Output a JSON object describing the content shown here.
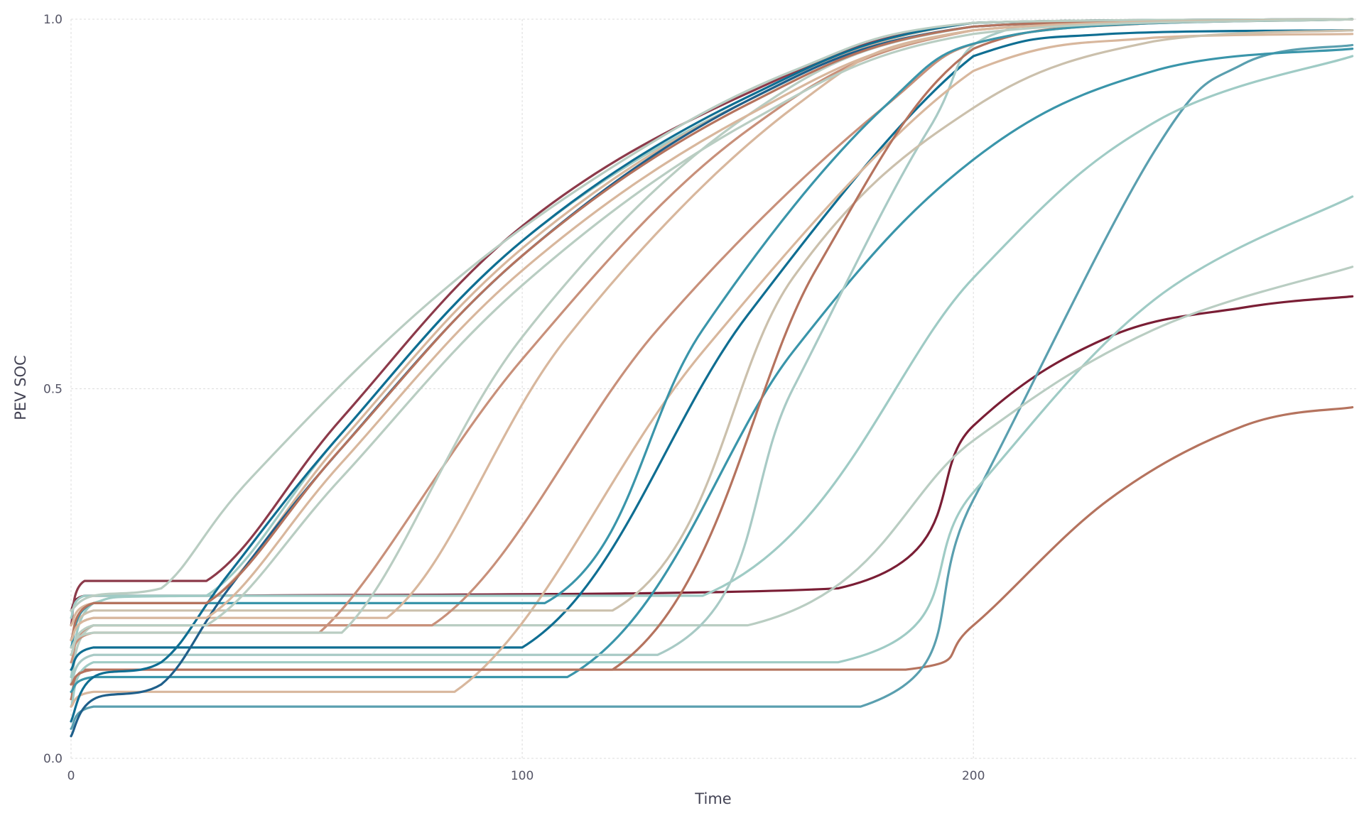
{
  "chart_data": {
    "type": "line",
    "title": "",
    "xlabel": "Time",
    "ylabel": "PEV SOC",
    "xlim": [
      0,
      285
    ],
    "ylim": [
      0,
      1
    ],
    "xticks": [
      0,
      100,
      200
    ],
    "xtick_labels": [
      "0",
      "100",
      "200"
    ],
    "yticks": [
      0,
      0.5,
      1
    ],
    "ytick_labels": [
      "0.0",
      "0.5",
      "1.0"
    ],
    "grid": true,
    "legend": "none",
    "series": [
      {
        "color": "#7a1e35",
        "values": [
          [
            0,
            0.2
          ],
          [
            3,
            0.22
          ],
          [
            30,
            0.22
          ],
          [
            170,
            0.23
          ],
          [
            200,
            0.45
          ],
          [
            230,
            0.57
          ],
          [
            260,
            0.61
          ],
          [
            284,
            0.625
          ]
        ]
      },
      {
        "color": "#b5735e",
        "values": [
          [
            0,
            0.08
          ],
          [
            3,
            0.12
          ],
          [
            30,
            0.12
          ],
          [
            185,
            0.12
          ],
          [
            200,
            0.18
          ],
          [
            230,
            0.35
          ],
          [
            260,
            0.45
          ],
          [
            284,
            0.475
          ]
        ]
      },
      {
        "color": "#5a9faf",
        "values": [
          [
            0,
            0.04
          ],
          [
            5,
            0.07
          ],
          [
            30,
            0.07
          ],
          [
            175,
            0.07
          ],
          [
            200,
            0.35
          ],
          [
            240,
            0.82
          ],
          [
            260,
            0.94
          ],
          [
            284,
            0.965
          ]
        ]
      },
      {
        "color": "#9fcbc5",
        "values": [
          [
            0,
            0.07
          ],
          [
            5,
            0.13
          ],
          [
            30,
            0.13
          ],
          [
            170,
            0.13
          ],
          [
            200,
            0.36
          ],
          [
            240,
            0.62
          ],
          [
            284,
            0.76
          ]
        ]
      },
      {
        "color": "#b9cdc2",
        "values": [
          [
            0,
            0.1
          ],
          [
            5,
            0.18
          ],
          [
            30,
            0.18
          ],
          [
            150,
            0.18
          ],
          [
            200,
            0.43
          ],
          [
            240,
            0.58
          ],
          [
            284,
            0.665
          ]
        ]
      },
      {
        "color": "#9fcbc5",
        "values": [
          [
            0,
            0.11
          ],
          [
            5,
            0.21
          ],
          [
            30,
            0.22
          ],
          [
            140,
            0.22
          ],
          [
            200,
            0.65
          ],
          [
            240,
            0.86
          ],
          [
            284,
            0.95
          ]
        ]
      },
      {
        "color": "#3a95aa",
        "values": [
          [
            0,
            0.09
          ],
          [
            5,
            0.11
          ],
          [
            30,
            0.11
          ],
          [
            110,
            0.11
          ],
          [
            160,
            0.55
          ],
          [
            200,
            0.81
          ],
          [
            240,
            0.93
          ],
          [
            284,
            0.96
          ]
        ]
      },
      {
        "color": "#0f6e92",
        "values": [
          [
            0,
            0.12
          ],
          [
            5,
            0.15
          ],
          [
            30,
            0.15
          ],
          [
            100,
            0.15
          ],
          [
            150,
            0.6
          ],
          [
            200,
            0.95
          ],
          [
            230,
            0.98
          ],
          [
            284,
            0.985
          ]
        ]
      },
      {
        "color": "#a8cac5",
        "values": [
          [
            0,
            0.1
          ],
          [
            5,
            0.14
          ],
          [
            30,
            0.14
          ],
          [
            130,
            0.14
          ],
          [
            160,
            0.5
          ],
          [
            190,
            0.85
          ],
          [
            210,
            0.99
          ],
          [
            284,
            1.0
          ]
        ]
      },
      {
        "color": "#d8b79d",
        "values": [
          [
            0,
            0.07
          ],
          [
            5,
            0.09
          ],
          [
            30,
            0.09
          ],
          [
            85,
            0.09
          ],
          [
            140,
            0.55
          ],
          [
            200,
            0.93
          ],
          [
            240,
            0.975
          ],
          [
            284,
            0.98
          ]
        ]
      },
      {
        "color": "#cbc0ac",
        "values": [
          [
            0,
            0.16
          ],
          [
            5,
            0.2
          ],
          [
            30,
            0.2
          ],
          [
            120,
            0.2
          ],
          [
            160,
            0.65
          ],
          [
            200,
            0.88
          ],
          [
            240,
            0.97
          ],
          [
            284,
            0.985
          ]
        ]
      },
      {
        "color": "#b5735e",
        "values": [
          [
            0,
            0.1
          ],
          [
            5,
            0.12
          ],
          [
            30,
            0.12
          ],
          [
            120,
            0.12
          ],
          [
            165,
            0.66
          ],
          [
            200,
            0.96
          ],
          [
            240,
            0.995
          ],
          [
            284,
            1.0
          ]
        ]
      },
      {
        "color": "#c8907a",
        "values": [
          [
            0,
            0.13
          ],
          [
            5,
            0.18
          ],
          [
            30,
            0.18
          ],
          [
            80,
            0.18
          ],
          [
            130,
            0.58
          ],
          [
            180,
            0.88
          ],
          [
            210,
            0.98
          ],
          [
            284,
            1.0
          ]
        ]
      },
      {
        "color": "#3a95aa",
        "values": [
          [
            0,
            0.15
          ],
          [
            5,
            0.21
          ],
          [
            30,
            0.21
          ],
          [
            105,
            0.21
          ],
          [
            140,
            0.58
          ],
          [
            180,
            0.88
          ],
          [
            210,
            0.98
          ],
          [
            284,
            1.0
          ]
        ]
      },
      {
        "color": "#c8907a",
        "values": [
          [
            0,
            0.14
          ],
          [
            5,
            0.17
          ],
          [
            30,
            0.17
          ],
          [
            55,
            0.17
          ],
          [
            100,
            0.54
          ],
          [
            150,
            0.85
          ],
          [
            200,
            0.985
          ],
          [
            284,
            1.0
          ]
        ]
      },
      {
        "color": "#d8b79d",
        "values": [
          [
            0,
            0.16
          ],
          [
            5,
            0.19
          ],
          [
            30,
            0.19
          ],
          [
            70,
            0.19
          ],
          [
            110,
            0.57
          ],
          [
            160,
            0.88
          ],
          [
            200,
            0.985
          ],
          [
            284,
            1.0
          ]
        ]
      },
      {
        "color": "#b9cdc2",
        "values": [
          [
            0,
            0.15
          ],
          [
            5,
            0.17
          ],
          [
            30,
            0.17
          ],
          [
            60,
            0.17
          ],
          [
            100,
            0.57
          ],
          [
            150,
            0.87
          ],
          [
            200,
            0.99
          ],
          [
            284,
            1.0
          ]
        ]
      },
      {
        "color": "#8c3a4a",
        "values": [
          [
            0,
            0.18
          ],
          [
            3,
            0.24
          ],
          [
            30,
            0.24
          ],
          [
            60,
            0.46
          ],
          [
            100,
            0.72
          ],
          [
            150,
            0.9
          ],
          [
            200,
            0.995
          ],
          [
            284,
            1.0
          ]
        ]
      },
      {
        "color": "#9fcbc5",
        "values": [
          [
            0,
            0.19
          ],
          [
            3,
            0.22
          ],
          [
            30,
            0.22
          ],
          [
            60,
            0.44
          ],
          [
            100,
            0.7
          ],
          [
            150,
            0.89
          ],
          [
            200,
            0.995
          ],
          [
            284,
            1.0
          ]
        ]
      },
      {
        "color": "#d8b79d",
        "values": [
          [
            0,
            0.18
          ],
          [
            5,
            0.21
          ],
          [
            30,
            0.21
          ],
          [
            60,
            0.43
          ],
          [
            100,
            0.69
          ],
          [
            150,
            0.89
          ],
          [
            200,
            0.995
          ],
          [
            284,
            1.0
          ]
        ]
      },
      {
        "color": "#0f6e92",
        "values": [
          [
            0,
            0.05
          ],
          [
            5,
            0.11
          ],
          [
            20,
            0.13
          ],
          [
            35,
            0.25
          ],
          [
            60,
            0.44
          ],
          [
            100,
            0.7
          ],
          [
            150,
            0.895
          ],
          [
            200,
            0.995
          ],
          [
            284,
            1.0
          ]
        ]
      },
      {
        "color": "#1f5f8a",
        "values": [
          [
            0,
            0.03
          ],
          [
            5,
            0.08
          ],
          [
            20,
            0.1
          ],
          [
            35,
            0.23
          ],
          [
            60,
            0.42
          ],
          [
            100,
            0.68
          ],
          [
            150,
            0.89
          ],
          [
            200,
            0.99
          ],
          [
            284,
            1.0
          ]
        ]
      },
      {
        "color": "#b5735e",
        "values": [
          [
            0,
            0.16
          ],
          [
            5,
            0.21
          ],
          [
            30,
            0.21
          ],
          [
            60,
            0.42
          ],
          [
            100,
            0.68
          ],
          [
            150,
            0.885
          ],
          [
            200,
            0.99
          ],
          [
            284,
            1.0
          ]
        ]
      },
      {
        "color": "#b9cdc2",
        "values": [
          [
            0,
            0.2
          ],
          [
            5,
            0.22
          ],
          [
            20,
            0.23
          ],
          [
            40,
            0.38
          ],
          [
            80,
            0.62
          ],
          [
            120,
            0.8
          ],
          [
            160,
            0.93
          ],
          [
            200,
            0.995
          ],
          [
            284,
            1.0
          ]
        ]
      },
      {
        "color": "#d8b79d",
        "values": [
          [
            0,
            0.16
          ],
          [
            5,
            0.19
          ],
          [
            30,
            0.19
          ],
          [
            60,
            0.4
          ],
          [
            100,
            0.66
          ],
          [
            150,
            0.87
          ],
          [
            200,
            0.985
          ],
          [
            284,
            1.0
          ]
        ]
      },
      {
        "color": "#b9cdc2",
        "values": [
          [
            0,
            0.14
          ],
          [
            5,
            0.18
          ],
          [
            30,
            0.18
          ],
          [
            60,
            0.38
          ],
          [
            100,
            0.64
          ],
          [
            150,
            0.86
          ],
          [
            200,
            0.98
          ],
          [
            284,
            1.0
          ]
        ]
      }
    ]
  }
}
